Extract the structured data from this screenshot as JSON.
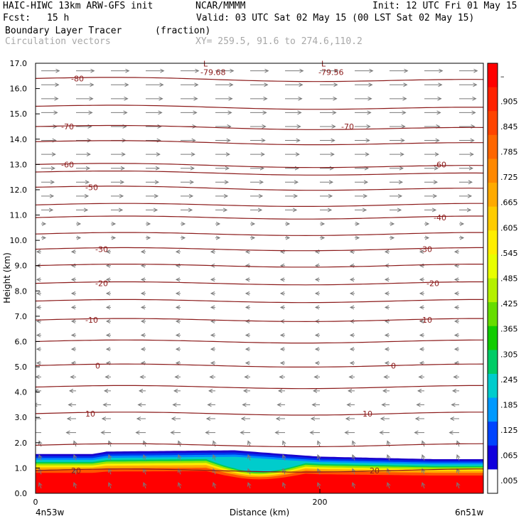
{
  "header": {
    "model": "HAIC-HIWC 13km ARW-GFS init",
    "org": "NCAR/MMMM",
    "init": "Init: 12 UTC Fri 01 May 15",
    "fcst_label": "Fcst:",
    "fcst_value": "15 h",
    "valid": "Valid: 03 UTC Sat 02 May 15 (00 LST Sat 02 May 15)",
    "field": "Boundary Layer Tracer",
    "units": "(fraction)",
    "vectors": "Circulation vectors",
    "xy": "XY= 259.5, 91.6 to 274.6,110.2"
  },
  "chart_data": {
    "type": "cross-section",
    "ylabel": "Height (km)",
    "xlabel": "Distance (km)",
    "x_left_label": "4n53w",
    "x_right_label": "6n51w",
    "ylim": [
      0,
      17
    ],
    "xlim": [
      0,
      315
    ],
    "y_ticks": [
      "0.0",
      "1.0",
      "2.0",
      "3.0",
      "4.0",
      "5.0",
      "6.0",
      "7.0",
      "8.0",
      "9.0",
      "10.0",
      "11.0",
      "12.0",
      "13.0",
      "14.0",
      "15.0",
      "16.0",
      "17.0"
    ],
    "x_ticks": [
      {
        "value": 0,
        "label": "0"
      },
      {
        "value": 200,
        "label": "200"
      }
    ],
    "colorbar": {
      "labels": [
        "–",
        ".905",
        ".845",
        ".785",
        ".725",
        ".665",
        ".605",
        ".545",
        ".485",
        ".425",
        ".365",
        ".305",
        ".245",
        ".185",
        ".125",
        ".065",
        ".005"
      ],
      "colors": [
        "#ff0000",
        "#ff2200",
        "#ff4400",
        "#ff6600",
        "#ff8800",
        "#ffaa00",
        "#ffcc00",
        "#ffee00",
        "#e8ff00",
        "#b4f000",
        "#66dd00",
        "#11cc00",
        "#00cc66",
        "#00cccc",
        "#0099ff",
        "#0044ff",
        "#1100dd",
        "#ffffff"
      ]
    },
    "tracer_top_km": [
      [
        0,
        1.55
      ],
      [
        40,
        1.55
      ],
      [
        50,
        1.65
      ],
      [
        140,
        1.7
      ],
      [
        175,
        1.55
      ],
      [
        200,
        1.45
      ],
      [
        240,
        1.4
      ],
      [
        280,
        1.35
      ],
      [
        315,
        1.35
      ]
    ],
    "isotherms": [
      {
        "label": "-80",
        "y": 16.4,
        "lx": 25
      },
      {
        "label": "-70",
        "y": 14.5,
        "lx": 18
      },
      {
        "label": "-70",
        "y": 14.5,
        "lx": 215
      },
      {
        "label": "-60",
        "y": 13.0,
        "lx": 18
      },
      {
        "label": "-60",
        "y": 13.0,
        "lx": 280
      },
      {
        "label": "-50",
        "y": 12.1,
        "lx": 35
      },
      {
        "label": "-40",
        "y": 10.9,
        "lx": 280
      },
      {
        "label": "-30",
        "y": 9.65,
        "lx": 42
      },
      {
        "label": "-30",
        "y": 9.65,
        "lx": 270
      },
      {
        "label": "-20",
        "y": 8.3,
        "lx": 42
      },
      {
        "label": "-20",
        "y": 8.3,
        "lx": 275
      },
      {
        "label": "-10",
        "y": 6.85,
        "lx": 35
      },
      {
        "label": "-10",
        "y": 6.85,
        "lx": 270
      },
      {
        "label": "0",
        "y": 5.05,
        "lx": 42
      },
      {
        "label": "0",
        "y": 5.05,
        "lx": 250
      },
      {
        "label": "10",
        "y": 3.15,
        "lx": 35
      },
      {
        "label": "10",
        "y": 3.15,
        "lx": 230
      },
      {
        "label": "20",
        "y": 0.9,
        "lx": 25
      },
      {
        "label": "20",
        "y": 0.9,
        "lx": 235
      }
    ],
    "other_contours_km": [
      15.3,
      13.9,
      12.7,
      11.4,
      10.25,
      9.0,
      7.6,
      6.0,
      4.2,
      1.9
    ],
    "minima": [
      {
        "symbol": "L",
        "label": "-79.68",
        "x": 118,
        "y": 16.7
      },
      {
        "symbol": "L",
        "label": "-79.56",
        "x": 201,
        "y": 16.7
      }
    ]
  }
}
